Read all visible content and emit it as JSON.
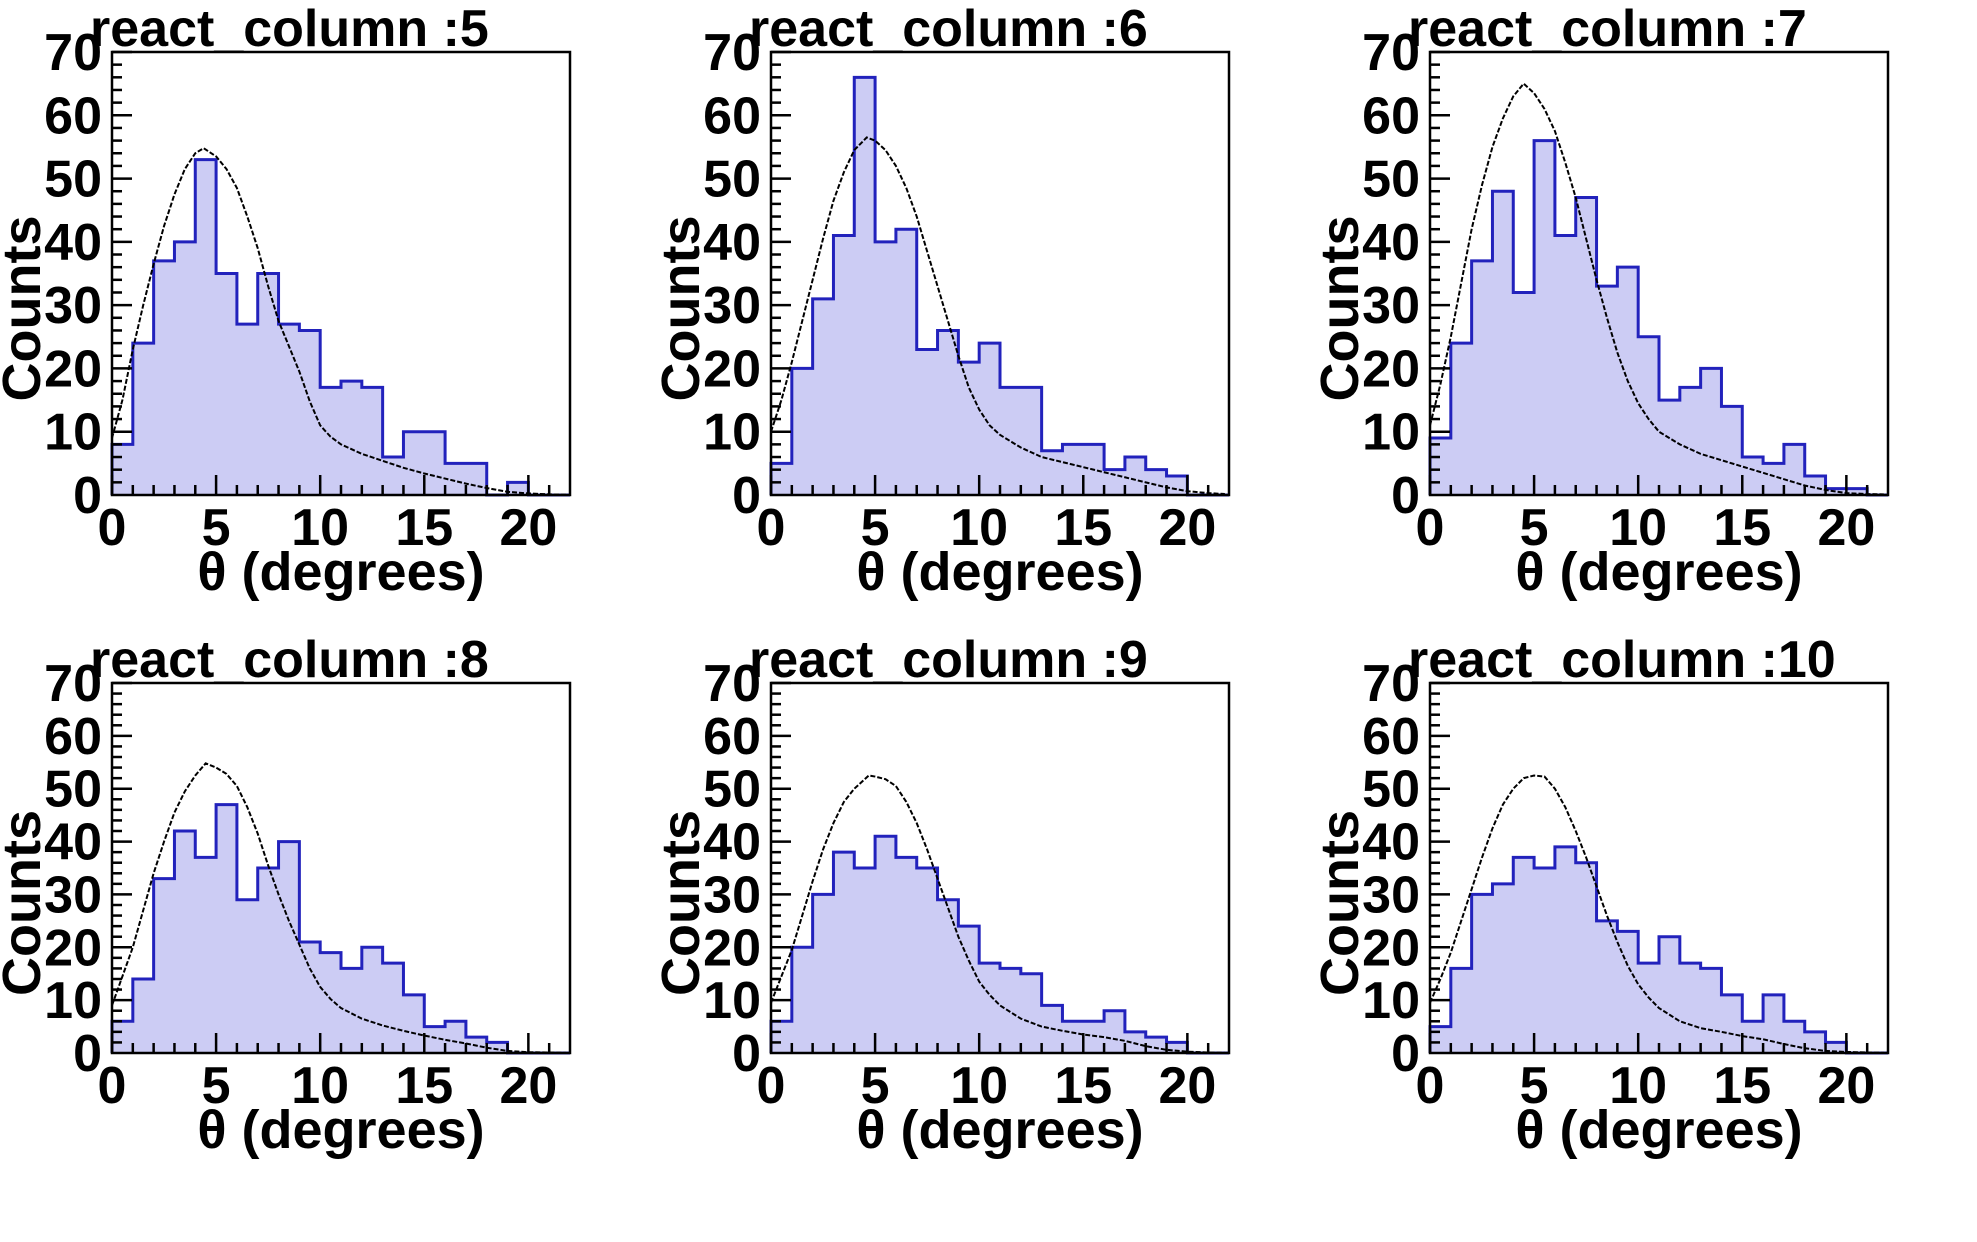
{
  "app": {
    "background": "#ffffff"
  },
  "style": {
    "hist_fill": "#ccccf4",
    "hist_stroke": "#2222bc",
    "curve_color": "#000000",
    "axis_color": "#000000",
    "text_color": "#000000"
  },
  "chart_data": {
    "layout": "2x3 grid, no legend, white background, boxed frames, inward ticks",
    "type": "histogram",
    "x_units": "degrees",
    "panels": [
      {
        "type": "bar",
        "title": "react_column :5",
        "xlabel": "θ (degrees)",
        "ylabel": "Counts",
        "xlim": [
          0,
          22
        ],
        "ylim": [
          0,
          70
        ],
        "xticks": [
          0,
          5,
          10,
          15,
          20
        ],
        "yticks": [
          0,
          10,
          20,
          30,
          40,
          50,
          60,
          70
        ],
        "bin_start": 0,
        "bin_width": 1,
        "values": [
          8,
          24,
          37,
          40,
          53,
          35,
          27,
          35,
          27,
          26,
          17,
          18,
          17,
          6,
          10,
          10,
          5,
          5,
          0,
          2,
          0,
          0
        ],
        "fit_curve": [
          [
            0,
            9
          ],
          [
            0.5,
            15
          ],
          [
            1,
            23
          ],
          [
            1.5,
            30
          ],
          [
            2,
            36.5
          ],
          [
            2.5,
            42.5
          ],
          [
            3,
            47.5
          ],
          [
            3.5,
            51.5
          ],
          [
            4,
            54
          ],
          [
            4.4,
            54.8
          ],
          [
            5,
            53.5
          ],
          [
            5.5,
            51.5
          ],
          [
            6,
            48.5
          ],
          [
            6.5,
            44
          ],
          [
            7,
            39
          ],
          [
            7.5,
            33
          ],
          [
            8,
            27.5
          ],
          [
            8.5,
            23.5
          ],
          [
            9,
            19.5
          ],
          [
            9.5,
            14.8
          ],
          [
            10,
            11
          ],
          [
            10.5,
            9.2
          ],
          [
            11,
            8
          ],
          [
            12,
            6.5
          ],
          [
            13,
            5.4
          ],
          [
            14,
            4.3
          ],
          [
            15,
            3.4
          ],
          [
            16,
            2.6
          ],
          [
            17,
            1.8
          ],
          [
            18,
            1.1
          ],
          [
            19,
            0.5
          ],
          [
            20,
            0.25
          ],
          [
            21,
            0.1
          ],
          [
            21.8,
            0.05
          ]
        ]
      },
      {
        "type": "bar",
        "title": "react_column :6",
        "xlabel": "θ (degrees)",
        "ylabel": "Counts",
        "xlim": [
          0,
          22
        ],
        "ylim": [
          0,
          70
        ],
        "xticks": [
          0,
          5,
          10,
          15,
          20
        ],
        "yticks": [
          0,
          10,
          20,
          30,
          40,
          50,
          60,
          70
        ],
        "bin_start": 0,
        "bin_width": 1,
        "values": [
          5,
          20,
          31,
          41,
          66,
          40,
          42,
          23,
          26,
          21,
          24,
          17,
          17,
          7,
          8,
          8,
          4,
          6,
          4,
          3,
          0,
          0
        ],
        "fit_curve": [
          [
            0,
            10
          ],
          [
            0.5,
            15
          ],
          [
            1,
            21
          ],
          [
            1.5,
            27.5
          ],
          [
            2,
            34
          ],
          [
            2.5,
            40.5
          ],
          [
            3,
            46.5
          ],
          [
            3.5,
            51
          ],
          [
            4,
            54.5
          ],
          [
            4.6,
            56.5
          ],
          [
            5,
            56
          ],
          [
            5.5,
            54.5
          ],
          [
            6,
            52
          ],
          [
            6.5,
            48.5
          ],
          [
            7,
            44
          ],
          [
            7.5,
            38.5
          ],
          [
            8,
            33
          ],
          [
            8.5,
            27.5
          ],
          [
            9,
            22
          ],
          [
            9.5,
            17
          ],
          [
            10,
            13.5
          ],
          [
            10.5,
            11
          ],
          [
            11,
            9.5
          ],
          [
            12,
            7.5
          ],
          [
            13,
            6
          ],
          [
            14,
            5.2
          ],
          [
            15,
            4.4
          ],
          [
            16,
            3.6
          ],
          [
            17,
            2.8
          ],
          [
            18,
            2
          ],
          [
            19,
            1.2
          ],
          [
            20,
            0.6
          ],
          [
            21,
            0.3
          ],
          [
            21.8,
            0.15
          ]
        ]
      },
      {
        "type": "bar",
        "title": "react_column :7",
        "xlabel": "θ (degrees)",
        "ylabel": "Counts",
        "xlim": [
          0,
          22
        ],
        "ylim": [
          0,
          70
        ],
        "xticks": [
          0,
          5,
          10,
          15,
          20
        ],
        "yticks": [
          0,
          10,
          20,
          30,
          40,
          50,
          60,
          70
        ],
        "bin_start": 0,
        "bin_width": 1,
        "values": [
          9,
          24,
          37,
          48,
          32,
          56,
          41,
          47,
          33,
          36,
          25,
          15,
          17,
          20,
          14,
          6,
          5,
          8,
          3,
          1,
          1,
          0
        ],
        "fit_curve": [
          [
            0,
            11
          ],
          [
            0.5,
            17.5
          ],
          [
            1,
            25
          ],
          [
            1.5,
            33.5
          ],
          [
            2,
            42
          ],
          [
            2.5,
            49
          ],
          [
            3,
            55
          ],
          [
            3.5,
            59.5
          ],
          [
            4,
            63
          ],
          [
            4.5,
            65
          ],
          [
            5,
            63.5
          ],
          [
            5.5,
            61
          ],
          [
            6,
            57.5
          ],
          [
            6.5,
            52.5
          ],
          [
            7,
            47
          ],
          [
            7.5,
            40.5
          ],
          [
            8,
            34
          ],
          [
            8.5,
            28
          ],
          [
            9,
            22.5
          ],
          [
            9.5,
            18
          ],
          [
            10,
            14.5
          ],
          [
            10.5,
            12
          ],
          [
            11,
            10
          ],
          [
            12,
            8
          ],
          [
            13,
            6.5
          ],
          [
            14,
            5.5
          ],
          [
            15,
            4.5
          ],
          [
            16,
            3.5
          ],
          [
            17,
            2.5
          ],
          [
            18,
            1.5
          ],
          [
            19,
            0.8
          ],
          [
            20,
            0.3
          ],
          [
            21,
            0.15
          ],
          [
            21.8,
            0.1
          ]
        ]
      },
      {
        "type": "bar",
        "title": "react_column :8",
        "xlabel": "θ (degrees)",
        "ylabel": "Counts",
        "xlim": [
          0,
          22
        ],
        "ylim": [
          0,
          70
        ],
        "xticks": [
          0,
          5,
          10,
          15,
          20
        ],
        "yticks": [
          0,
          10,
          20,
          30,
          40,
          50,
          60,
          70
        ],
        "bin_start": 0,
        "bin_width": 1,
        "values": [
          6,
          14,
          33,
          42,
          37,
          47,
          29,
          35,
          40,
          21,
          19,
          16,
          20,
          17,
          11,
          5,
          6,
          3,
          2,
          0,
          0,
          0
        ],
        "fit_curve": [
          [
            0,
            9
          ],
          [
            0.5,
            14.5
          ],
          [
            1,
            20
          ],
          [
            1.5,
            27
          ],
          [
            2,
            34
          ],
          [
            2.5,
            40
          ],
          [
            3,
            45.5
          ],
          [
            3.5,
            49.5
          ],
          [
            4,
            52.5
          ],
          [
            4.5,
            54.8
          ],
          [
            5,
            54
          ],
          [
            5.5,
            52.8
          ],
          [
            6,
            50.5
          ],
          [
            6.5,
            46.5
          ],
          [
            7,
            41.5
          ],
          [
            7.5,
            35.5
          ],
          [
            8,
            30
          ],
          [
            8.5,
            25
          ],
          [
            9,
            20.5
          ],
          [
            9.5,
            16
          ],
          [
            10,
            12.5
          ],
          [
            10.5,
            10.2
          ],
          [
            11,
            8.5
          ],
          [
            12,
            6.5
          ],
          [
            13,
            5.2
          ],
          [
            14,
            4.2
          ],
          [
            15,
            3.3
          ],
          [
            16,
            2.5
          ],
          [
            17,
            1.8
          ],
          [
            18,
            1
          ],
          [
            19,
            0.4
          ],
          [
            20,
            0.15
          ],
          [
            21,
            0.1
          ],
          [
            21.8,
            0.05
          ]
        ]
      },
      {
        "type": "bar",
        "title": "react_column :9",
        "xlabel": "θ (degrees)",
        "ylabel": "Counts",
        "xlim": [
          0,
          22
        ],
        "ylim": [
          0,
          70
        ],
        "xticks": [
          0,
          5,
          10,
          15,
          20
        ],
        "yticks": [
          0,
          10,
          20,
          30,
          40,
          50,
          60,
          70
        ],
        "bin_start": 0,
        "bin_width": 1,
        "values": [
          6,
          20,
          30,
          38,
          35,
          41,
          37,
          35,
          29,
          24,
          17,
          16,
          15,
          9,
          6,
          6,
          8,
          4,
          3,
          2,
          0,
          0
        ],
        "fit_curve": [
          [
            0,
            9.5
          ],
          [
            0.5,
            14.5
          ],
          [
            1,
            19.5
          ],
          [
            1.5,
            26
          ],
          [
            2,
            32.5
          ],
          [
            2.5,
            38.5
          ],
          [
            3,
            43.5
          ],
          [
            3.5,
            47.5
          ],
          [
            4,
            50
          ],
          [
            4.7,
            52.5
          ],
          [
            5,
            52.3
          ],
          [
            5.5,
            51.8
          ],
          [
            6,
            50.5
          ],
          [
            6.5,
            47.5
          ],
          [
            7,
            43.5
          ],
          [
            7.5,
            38.5
          ],
          [
            8,
            33
          ],
          [
            8.5,
            27.5
          ],
          [
            9,
            22
          ],
          [
            9.5,
            17.5
          ],
          [
            10,
            13.5
          ],
          [
            10.5,
            11
          ],
          [
            11,
            9
          ],
          [
            12,
            6.5
          ],
          [
            13,
            5
          ],
          [
            14,
            4.2
          ],
          [
            15,
            3.5
          ],
          [
            16,
            3
          ],
          [
            17,
            2.3
          ],
          [
            18,
            1.3
          ],
          [
            19,
            0.6
          ],
          [
            20,
            0.25
          ],
          [
            21,
            0.1
          ],
          [
            21.8,
            0.05
          ]
        ]
      },
      {
        "type": "bar",
        "title": "react_column :10",
        "xlabel": "θ (degrees)",
        "ylabel": "Counts",
        "xlim": [
          0,
          22
        ],
        "ylim": [
          0,
          70
        ],
        "xticks": [
          0,
          5,
          10,
          15,
          20
        ],
        "yticks": [
          0,
          10,
          20,
          30,
          40,
          50,
          60,
          70
        ],
        "bin_start": 0,
        "bin_width": 1,
        "values": [
          5,
          16,
          30,
          32,
          37,
          35,
          39,
          36,
          25,
          23,
          17,
          22,
          17,
          16,
          11,
          6,
          11,
          6,
          4,
          2,
          0,
          0
        ],
        "fit_curve": [
          [
            0,
            9.5
          ],
          [
            0.5,
            14
          ],
          [
            1,
            19
          ],
          [
            1.5,
            25
          ],
          [
            2,
            31
          ],
          [
            2.5,
            37
          ],
          [
            3,
            42.5
          ],
          [
            3.5,
            47
          ],
          [
            4,
            50
          ],
          [
            4.5,
            52
          ],
          [
            5,
            52.5
          ],
          [
            5.5,
            52.3
          ],
          [
            6,
            50
          ],
          [
            6.5,
            46.5
          ],
          [
            7,
            42
          ],
          [
            7.5,
            37
          ],
          [
            8,
            31.5
          ],
          [
            8.5,
            26
          ],
          [
            9,
            21
          ],
          [
            9.5,
            16.5
          ],
          [
            10,
            13
          ],
          [
            10.5,
            10.5
          ],
          [
            11,
            8.5
          ],
          [
            12,
            6
          ],
          [
            13,
            4.7
          ],
          [
            14,
            4
          ],
          [
            15,
            3.2
          ],
          [
            16,
            2.6
          ],
          [
            17,
            1.7
          ],
          [
            18,
            0.9
          ],
          [
            19,
            0.4
          ],
          [
            20,
            0.2
          ],
          [
            21,
            0.1
          ],
          [
            21.8,
            0.05
          ]
        ]
      }
    ]
  }
}
